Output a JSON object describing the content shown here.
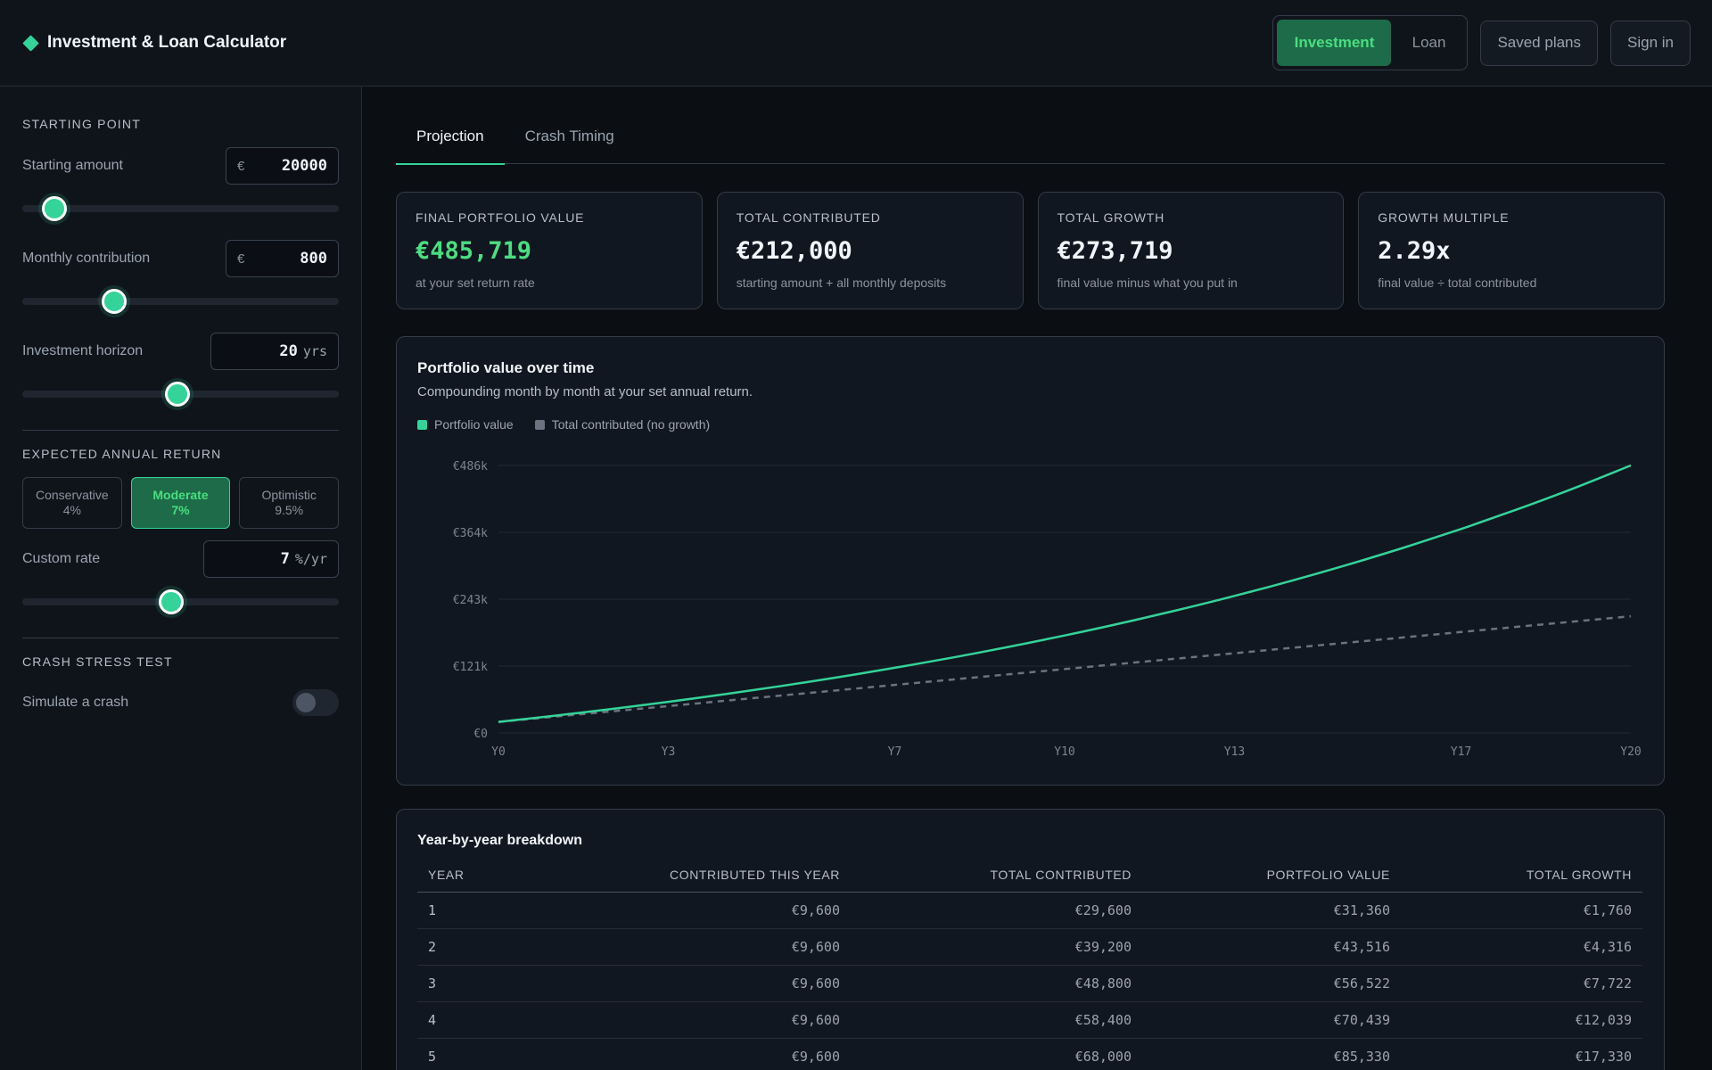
{
  "header": {
    "title": "Investment & Loan Calculator",
    "modes": [
      {
        "label": "Investment",
        "active": true
      },
      {
        "label": "Loan",
        "active": false
      }
    ],
    "saved_label": "Saved plans",
    "signin_label": "Sign in"
  },
  "sidebar": {
    "starting_section": "STARTING POINT",
    "starting_amount": {
      "label": "Starting amount",
      "prefix": "€",
      "value": "20000",
      "slider_fraction": 0.1
    },
    "monthly": {
      "label": "Monthly contribution",
      "prefix": "€",
      "value": "800",
      "slider_fraction": 0.29
    },
    "horizon": {
      "label": "Investment horizon",
      "value": "20",
      "unit": "yrs",
      "slider_fraction": 0.49
    },
    "return_section": "EXPECTED ANNUAL RETURN",
    "presets": [
      {
        "name": "Conservative",
        "rate": "4%",
        "active": false
      },
      {
        "name": "Moderate",
        "rate": "7%",
        "active": true
      },
      {
        "name": "Optimistic",
        "rate": "9.5%",
        "active": false
      }
    ],
    "custom_rate": {
      "label": "Custom rate",
      "value": "7",
      "unit": "%/yr",
      "slider_fraction": 0.47
    },
    "crash_section": "CRASH STRESS TEST",
    "crash_toggle": {
      "label": "Simulate a crash",
      "on": false
    }
  },
  "tabs": [
    {
      "label": "Projection",
      "active": true
    },
    {
      "label": "Crash Timing",
      "active": false
    }
  ],
  "cards": [
    {
      "label": "FINAL PORTFOLIO VALUE",
      "value": "€485,719",
      "sub": "at your set return rate",
      "highlight": true
    },
    {
      "label": "TOTAL CONTRIBUTED",
      "value": "€212,000",
      "sub": "starting amount + all monthly deposits",
      "highlight": false
    },
    {
      "label": "TOTAL GROWTH",
      "value": "€273,719",
      "sub": "final value minus what you put in",
      "highlight": false
    },
    {
      "label": "GROWTH MULTIPLE",
      "value": "2.29x",
      "sub": "final value ÷ total contributed",
      "highlight": false
    }
  ],
  "chart": {
    "title": "Portfolio value over time",
    "subtitle": "Compounding month by month at your set annual return.",
    "colors": {
      "portfolio": "#34d399",
      "contributed": "#6b7280"
    }
  },
  "chart_data": {
    "type": "line",
    "x": [
      0,
      1,
      2,
      3,
      4,
      5,
      6,
      7,
      8,
      9,
      10,
      11,
      12,
      13,
      14,
      15,
      16,
      17,
      18,
      19,
      20
    ],
    "x_tick_labels": [
      "Y0",
      "Y3",
      "Y7",
      "Y10",
      "Y13",
      "Y17",
      "Y20"
    ],
    "x_tick_values": [
      0,
      3,
      7,
      10,
      13,
      17,
      20
    ],
    "y_tick_labels": [
      "€0",
      "€121k",
      "€243k",
      "€364k",
      "€486k"
    ],
    "y_tick_values": [
      0,
      121430,
      242860,
      364289,
      485719
    ],
    "ylim": [
      0,
      485719
    ],
    "series": [
      {
        "name": "Portfolio value",
        "values": [
          20000,
          31360,
          43516,
          56522,
          70439,
          85330,
          101263,
          118312,
          136554,
          156073,
          176958,
          199305,
          223217,
          248802,
          276178,
          305470,
          336813,
          370349,
          406233,
          444628,
          485719
        ]
      },
      {
        "name": "Total contributed (no growth)",
        "values": [
          20000,
          29600,
          39200,
          48800,
          58400,
          68000,
          77600,
          87200,
          96800,
          106400,
          116000,
          125600,
          135200,
          144800,
          154400,
          164000,
          173600,
          183200,
          192800,
          202400,
          212000
        ]
      }
    ],
    "legend": "top-left",
    "grid": true
  },
  "table": {
    "title": "Year-by-year breakdown",
    "columns": [
      "YEAR",
      "CONTRIBUTED THIS YEAR",
      "TOTAL CONTRIBUTED",
      "PORTFOLIO VALUE",
      "TOTAL GROWTH"
    ],
    "rows": [
      [
        "1",
        "€9,600",
        "€29,600",
        "€31,360",
        "€1,760"
      ],
      [
        "2",
        "€9,600",
        "€39,200",
        "€43,516",
        "€4,316"
      ],
      [
        "3",
        "€9,600",
        "€48,800",
        "€56,522",
        "€7,722"
      ],
      [
        "4",
        "€9,600",
        "€58,400",
        "€70,439",
        "€12,039"
      ],
      [
        "5",
        "€9,600",
        "€68,000",
        "€85,330",
        "€17,330"
      ]
    ]
  }
}
